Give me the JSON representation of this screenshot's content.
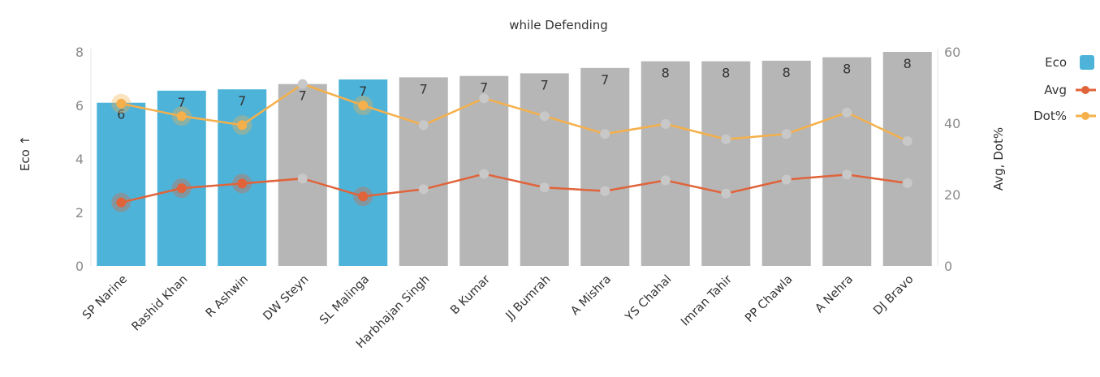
{
  "chart_data": {
    "type": "bar",
    "title": "while Defending",
    "categories": [
      "SP Narine",
      "Rashid Khan",
      "R Ashwin",
      "DW Steyn",
      "SL Malinga",
      "Harbhajan Singh",
      "B Kumar",
      "JJ Bumrah",
      "A Mishra",
      "YS Chahal",
      "Imran Tahir",
      "PP Chawla",
      "A Nehra",
      "DJ Bravo"
    ],
    "series": [
      {
        "name": "Eco",
        "kind": "bar",
        "axis": "left",
        "values": [
          6.1,
          6.55,
          6.6,
          6.8,
          6.97,
          7.05,
          7.1,
          7.2,
          7.4,
          7.65,
          7.65,
          7.67,
          7.8,
          8.0
        ],
        "data_labels": [
          "6",
          "7",
          "7",
          "7",
          "7",
          "7",
          "7",
          "7",
          "7",
          "8",
          "8",
          "8",
          "8",
          "8"
        ],
        "highlighted": [
          true,
          true,
          true,
          false,
          true,
          false,
          false,
          false,
          false,
          false,
          false,
          false,
          false,
          false
        ]
      },
      {
        "name": "Avg",
        "kind": "line",
        "axis": "right",
        "values": [
          17.8,
          21.8,
          23.1,
          24.5,
          19.5,
          21.5,
          25.8,
          22.0,
          21.0,
          24.0,
          20.3,
          24.2,
          25.6,
          23.2
        ]
      },
      {
        "name": "Dot%",
        "kind": "line",
        "axis": "right",
        "values": [
          45.5,
          42.0,
          39.5,
          51.0,
          45.0,
          39.5,
          47.0,
          42.0,
          37.0,
          39.8,
          35.5,
          37.0,
          43.0,
          35.0
        ]
      }
    ],
    "xlabel": "",
    "ylabel": "Eco ↑",
    "y2label": "Avg, Dot%",
    "ylim": [
      0,
      8
    ],
    "yticks": [
      0,
      2,
      4,
      6,
      8
    ],
    "y2lim": [
      0,
      60
    ],
    "y2ticks": [
      0,
      20,
      40,
      60
    ],
    "grid": false,
    "legend": {
      "position": "top-right",
      "entries": [
        "Eco",
        "Avg",
        "Dot%"
      ]
    },
    "colors": {
      "highlight_bar": "#4eb3d9",
      "bar": "#b6b6b6",
      "avg": "#e0633a",
      "dot": "#f5b04b",
      "muted_point": "#c8c8c8"
    }
  }
}
